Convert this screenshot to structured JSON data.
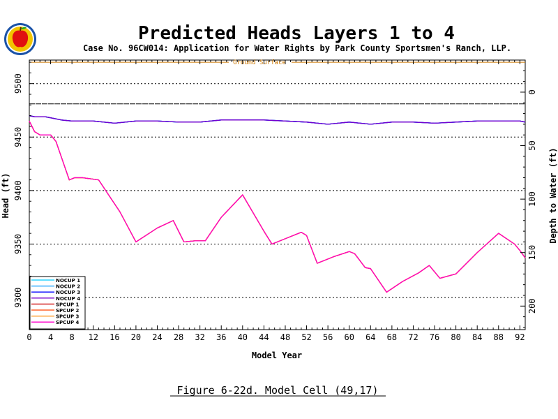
{
  "title": "Predicted Heads Layers 1 to 4",
  "subtitle": "Case No. 96CW014: Application for Water Rights by Park County Sportsmen's Ranch, LLP.",
  "caption": "Figure 6-22d.  Model Cell (49,17)",
  "logo_icon": "apple-logo-icon",
  "chart_data": {
    "type": "line",
    "title": "Predicted Heads Layers 1 to 4",
    "xlabel": "Model Year",
    "ylabel": "Head (ft)",
    "y2label": "Depth to Water (ft)",
    "xlim": [
      0,
      93
    ],
    "ylim": [
      9270,
      9522
    ],
    "y2lim": [
      222,
      -30
    ],
    "xticks": [
      0,
      4,
      8,
      12,
      16,
      20,
      24,
      28,
      32,
      36,
      40,
      44,
      48,
      52,
      56,
      60,
      64,
      68,
      72,
      76,
      80,
      84,
      88,
      92
    ],
    "yticks": [
      9300,
      9350,
      9400,
      9450,
      9500
    ],
    "y2ticks": [
      0,
      50,
      100,
      150,
      200
    ],
    "hlines_dotted": [
      9300,
      9350,
      9400,
      9450,
      9500
    ],
    "ground_surface": {
      "label": "Ground Surface",
      "value": 9520,
      "color": "#cc7700"
    },
    "reference_line": {
      "value": 9481,
      "color": "#000000"
    },
    "legend_position": "bottom-left",
    "series": [
      {
        "name": "NOCUP  1",
        "color": "#00ccff",
        "x": [
          0,
          1,
          3,
          4,
          6,
          8,
          12,
          16,
          20,
          24,
          28,
          32,
          36,
          40,
          44,
          48,
          52,
          56,
          60,
          64,
          68,
          72,
          76,
          80,
          84,
          88,
          92,
          93
        ],
        "y": [
          9470,
          9469,
          9469,
          9468,
          9466,
          9465,
          9465,
          9463,
          9465,
          9465,
          9464,
          9464,
          9466,
          9466,
          9466,
          9465,
          9464,
          9462,
          9464,
          9462,
          9464,
          9464,
          9463,
          9464,
          9465,
          9465,
          9465,
          9464
        ]
      },
      {
        "name": "NOCUP  2",
        "color": "#0099ff",
        "x": [
          0,
          1,
          3,
          4,
          6,
          8,
          12,
          16,
          20,
          24,
          28,
          32,
          36,
          40,
          44,
          48,
          52,
          56,
          60,
          64,
          68,
          72,
          76,
          80,
          84,
          88,
          92,
          93
        ],
        "y": [
          9470,
          9469,
          9469,
          9468,
          9466,
          9465,
          9465,
          9463,
          9465,
          9465,
          9464,
          9464,
          9466,
          9466,
          9466,
          9465,
          9464,
          9462,
          9464,
          9462,
          9464,
          9464,
          9463,
          9464,
          9465,
          9465,
          9465,
          9464
        ]
      },
      {
        "name": "NOCUP  3",
        "color": "#0000ff",
        "x": [
          0,
          1,
          3,
          4,
          6,
          8,
          12,
          16,
          20,
          24,
          28,
          32,
          36,
          40,
          44,
          48,
          52,
          56,
          60,
          64,
          68,
          72,
          76,
          80,
          84,
          88,
          92,
          93
        ],
        "y": [
          9470,
          9469,
          9469,
          9468,
          9466,
          9465,
          9465,
          9463,
          9465,
          9465,
          9464,
          9464,
          9466,
          9466,
          9466,
          9465,
          9464,
          9462,
          9464,
          9462,
          9464,
          9464,
          9463,
          9464,
          9465,
          9465,
          9465,
          9464
        ]
      },
      {
        "name": "NOCUP  4",
        "color": "#7700cc",
        "x": [
          0,
          1,
          3,
          4,
          6,
          8,
          12,
          16,
          20,
          24,
          28,
          32,
          36,
          40,
          44,
          48,
          52,
          56,
          60,
          64,
          68,
          72,
          76,
          80,
          84,
          88,
          92,
          93
        ],
        "y": [
          9470,
          9469,
          9469,
          9468,
          9466,
          9465,
          9465,
          9463,
          9465,
          9465,
          9464,
          9464,
          9466,
          9466,
          9466,
          9465,
          9464,
          9462,
          9464,
          9462,
          9464,
          9464,
          9463,
          9464,
          9465,
          9465,
          9465,
          9464
        ]
      },
      {
        "name": "SPCUP  1",
        "color": "#cc0000",
        "x": [
          0,
          1,
          2,
          4,
          5,
          7.5,
          8.5,
          10,
          13,
          17,
          20,
          24,
          27,
          29,
          31,
          33,
          36,
          40,
          44,
          45.5,
          48,
          51,
          52,
          54,
          57,
          60,
          61,
          63,
          64,
          67,
          70,
          73,
          75,
          77,
          80,
          84,
          88,
          91,
          92,
          93
        ],
        "y": [
          9465,
          9455,
          9452,
          9452,
          9446,
          9410,
          9412,
          9412,
          9410,
          9380,
          9352,
          9365,
          9372,
          9352,
          9353,
          9353,
          9375,
          9396,
          9362,
          9350,
          9355,
          9361,
          9358,
          9332,
          9338,
          9343,
          9341,
          9328,
          9327,
          9305,
          9315,
          9323,
          9330,
          9318,
          9322,
          9342,
          9360,
          9350,
          9344,
          9337
        ]
      },
      {
        "name": "SPCUP  2",
        "color": "#ff4400",
        "x": [
          0,
          1,
          2,
          4,
          5,
          7.5,
          8.5,
          10,
          13,
          17,
          20,
          24,
          27,
          29,
          31,
          33,
          36,
          40,
          44,
          45.5,
          48,
          51,
          52,
          54,
          57,
          60,
          61,
          63,
          64,
          67,
          70,
          73,
          75,
          77,
          80,
          84,
          88,
          91,
          92,
          93
        ],
        "y": [
          9465,
          9455,
          9452,
          9452,
          9446,
          9410,
          9412,
          9412,
          9410,
          9380,
          9352,
          9365,
          9372,
          9352,
          9353,
          9353,
          9375,
          9396,
          9362,
          9350,
          9355,
          9361,
          9358,
          9332,
          9338,
          9343,
          9341,
          9328,
          9327,
          9305,
          9315,
          9323,
          9330,
          9318,
          9322,
          9342,
          9360,
          9350,
          9344,
          9337
        ]
      },
      {
        "name": "SPCUP  3",
        "color": "#ff8800",
        "x": [
          0,
          1,
          2,
          4,
          5,
          7.5,
          8.5,
          10,
          13,
          17,
          20,
          24,
          27,
          29,
          31,
          33,
          36,
          40,
          44,
          45.5,
          48,
          51,
          52,
          54,
          57,
          60,
          61,
          63,
          64,
          67,
          70,
          73,
          75,
          77,
          80,
          84,
          88,
          91,
          92,
          93
        ],
        "y": [
          9465,
          9455,
          9452,
          9452,
          9446,
          9410,
          9412,
          9412,
          9410,
          9380,
          9352,
          9365,
          9372,
          9352,
          9353,
          9353,
          9375,
          9396,
          9362,
          9350,
          9355,
          9361,
          9358,
          9332,
          9338,
          9343,
          9341,
          9328,
          9327,
          9305,
          9315,
          9323,
          9330,
          9318,
          9322,
          9342,
          9360,
          9350,
          9344,
          9337
        ]
      },
      {
        "name": "SPCUP  4",
        "color": "#ff00cc",
        "x": [
          0,
          1,
          2,
          4,
          5,
          7.5,
          8.5,
          10,
          13,
          17,
          20,
          24,
          27,
          29,
          31,
          33,
          36,
          40,
          44,
          45.5,
          48,
          51,
          52,
          54,
          57,
          60,
          61,
          63,
          64,
          67,
          70,
          73,
          75,
          77,
          80,
          84,
          88,
          91,
          92,
          93
        ],
        "y": [
          9465,
          9455,
          9452,
          9452,
          9446,
          9410,
          9412,
          9412,
          9410,
          9380,
          9352,
          9365,
          9372,
          9352,
          9353,
          9353,
          9375,
          9396,
          9362,
          9350,
          9355,
          9361,
          9358,
          9332,
          9338,
          9343,
          9341,
          9328,
          9327,
          9305,
          9315,
          9323,
          9330,
          9318,
          9322,
          9342,
          9360,
          9350,
          9344,
          9337
        ]
      }
    ]
  }
}
